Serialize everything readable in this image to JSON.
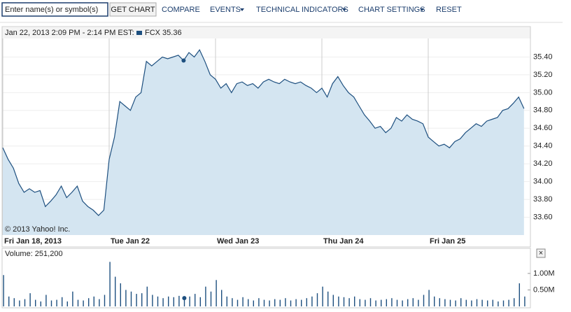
{
  "toolbar": {
    "input_placeholder": "Enter name(s) or symbol(s)",
    "get_chart": "GET CHART",
    "compare": "COMPARE",
    "events": "EVENTS",
    "technical_indicators": "TECHNICAL INDICATORS",
    "chart_settings": "CHART SETTINGS",
    "reset": "RESET",
    "close": "×"
  },
  "chart_data": [
    {
      "type": "area",
      "hover_time": "Jan 22, 2013 2:09 PM - 2:14 PM EST:",
      "hover_label": "FCX 35.36",
      "hover_index": 34,
      "copyright": "© 2013 Yahoo! Inc.",
      "categories": [
        "Fri Jan 18, 2013",
        null,
        null,
        null,
        null,
        null,
        null,
        null,
        null,
        null,
        null,
        null,
        null,
        null,
        null,
        null,
        null,
        null,
        null,
        null,
        "Tue Jan 22",
        null,
        null,
        null,
        null,
        null,
        null,
        null,
        null,
        null,
        null,
        null,
        null,
        null,
        null,
        null,
        null,
        null,
        null,
        null,
        "Wed Jan 23",
        null,
        null,
        null,
        null,
        null,
        null,
        null,
        null,
        null,
        null,
        null,
        null,
        null,
        null,
        null,
        null,
        null,
        null,
        null,
        "Thu Jan 24",
        null,
        null,
        null,
        null,
        null,
        null,
        null,
        null,
        null,
        null,
        null,
        null,
        null,
        null,
        null,
        null,
        null,
        null,
        null,
        "Fri Jan 25",
        null,
        null,
        null,
        null,
        null,
        null,
        null,
        null,
        null,
        null,
        null,
        null,
        null,
        null,
        null,
        null,
        null,
        null
      ],
      "series": [
        {
          "name": "FCX",
          "color": "#1d4f7f",
          "values": [
            34.38,
            34.25,
            34.15,
            33.98,
            33.88,
            33.92,
            33.88,
            33.9,
            33.72,
            33.78,
            33.85,
            33.95,
            33.82,
            33.88,
            33.95,
            33.78,
            33.72,
            33.68,
            33.62,
            33.68,
            34.25,
            34.5,
            34.9,
            34.85,
            34.8,
            34.95,
            35.0,
            35.35,
            35.3,
            35.35,
            35.4,
            35.38,
            35.4,
            35.42,
            35.36,
            35.45,
            35.4,
            35.48,
            35.35,
            35.2,
            35.15,
            35.05,
            35.1,
            35.0,
            35.1,
            35.12,
            35.08,
            35.1,
            35.05,
            35.12,
            35.15,
            35.12,
            35.1,
            35.15,
            35.12,
            35.1,
            35.12,
            35.08,
            35.05,
            35.0,
            35.05,
            34.95,
            35.1,
            35.18,
            35.08,
            35.0,
            34.95,
            34.85,
            34.75,
            34.68,
            34.6,
            34.62,
            34.55,
            34.6,
            34.72,
            34.68,
            34.75,
            34.7,
            34.68,
            34.65,
            34.5,
            34.45,
            34.4,
            34.42,
            34.38,
            34.45,
            34.48,
            34.55,
            34.6,
            34.65,
            34.62,
            34.68,
            34.7,
            34.72,
            34.8,
            34.82,
            34.88,
            34.95,
            34.82
          ]
        }
      ],
      "fill": "#d4e5f1",
      "ylim": [
        33.4,
        35.6
      ],
      "yticks": [
        {
          "value": 33.6,
          "label": "33.60"
        },
        {
          "value": 33.8,
          "label": "33.80"
        },
        {
          "value": 34.0,
          "label": "34.00"
        },
        {
          "value": 34.2,
          "label": "34.20"
        },
        {
          "value": 34.4,
          "label": "34.40"
        },
        {
          "value": 34.6,
          "label": "34.60"
        },
        {
          "value": 34.8,
          "label": "34.80"
        },
        {
          "value": 35.0,
          "label": "35.00"
        },
        {
          "value": 35.2,
          "label": "35.20"
        },
        {
          "value": 35.4,
          "label": "35.40"
        }
      ],
      "grid": true
    },
    {
      "type": "bar",
      "hover_label": "Volume: 251,200",
      "hover_index": 34,
      "series": [
        {
          "name": "Volume",
          "color": "#1d4f7f",
          "values": [
            950000,
            300000,
            250000,
            180000,
            220000,
            400000,
            200000,
            150000,
            350000,
            180000,
            200000,
            280000,
            150000,
            450000,
            200000,
            180000,
            250000,
            300000,
            220000,
            350000,
            1350000,
            900000,
            700000,
            500000,
            450000,
            380000,
            400000,
            600000,
            350000,
            300000,
            250000,
            300000,
            280000,
            320000,
            251200,
            300000,
            380000,
            280000,
            600000,
            450000,
            800000,
            500000,
            300000,
            250000,
            200000,
            280000,
            220000,
            180000,
            250000,
            200000,
            180000,
            220000,
            200000,
            250000,
            180000,
            220000,
            200000,
            250000,
            300000,
            400000,
            600000,
            450000,
            350000,
            300000,
            280000,
            250000,
            300000,
            220000,
            200000,
            250000,
            180000,
            200000,
            220000,
            250000,
            200000,
            180000,
            220000,
            250000,
            200000,
            350000,
            500000,
            300000,
            250000,
            220000,
            200000,
            180000,
            250000,
            200000,
            180000,
            220000,
            200000,
            180000,
            200000,
            150000,
            180000,
            200000,
            250000,
            700000,
            300000
          ]
        }
      ],
      "ylim": [
        0,
        1400000
      ],
      "yticks": [
        {
          "value": 500000,
          "label": "0.50M"
        },
        {
          "value": 1000000,
          "label": "1.00M"
        }
      ],
      "grid": false
    }
  ]
}
